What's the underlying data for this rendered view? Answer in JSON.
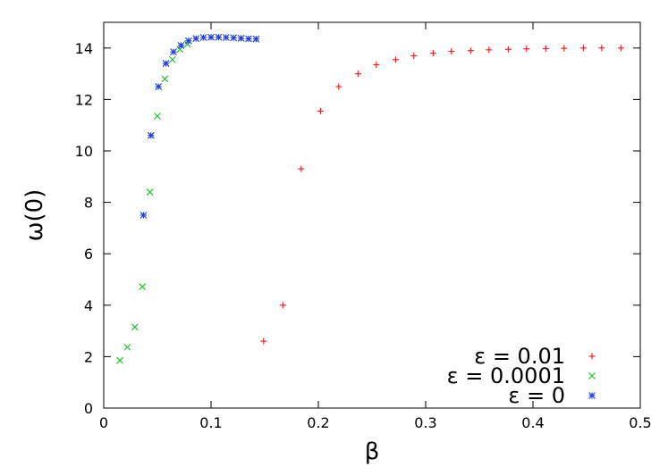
{
  "chart_data": {
    "type": "scatter",
    "title": "",
    "xlabel": "β",
    "ylabel": "ω(0)",
    "xlim": [
      0,
      0.5
    ],
    "ylim": [
      0,
      15
    ],
    "x_ticks": [
      "0",
      "0.1",
      "0.2",
      "0.3",
      "0.4",
      "0.5"
    ],
    "y_ticks": [
      "0",
      "2",
      "4",
      "6",
      "8",
      "10",
      "12",
      "14"
    ],
    "grid": false,
    "legend_position": "bottom-right",
    "series": [
      {
        "name": "ε = 0.01",
        "color": "#e8262b",
        "marker": "plus",
        "x": [
          0.149,
          0.167,
          0.184,
          0.202,
          0.219,
          0.237,
          0.254,
          0.272,
          0.289,
          0.307,
          0.324,
          0.342,
          0.359,
          0.377,
          0.394,
          0.412,
          0.429,
          0.447,
          0.464,
          0.482
        ],
        "y": [
          2.6,
          4.0,
          9.3,
          11.55,
          12.5,
          13.0,
          13.35,
          13.55,
          13.7,
          13.8,
          13.87,
          13.9,
          13.93,
          13.95,
          13.97,
          13.98,
          13.99,
          14.0,
          14.0,
          14.0
        ]
      },
      {
        "name": "ε = 0.0001",
        "color": "#22c22b",
        "marker": "cross",
        "x": [
          0.015,
          0.022,
          0.029,
          0.036,
          0.043,
          0.05,
          0.057,
          0.064,
          0.071,
          0.078
        ],
        "y": [
          1.85,
          2.37,
          3.15,
          4.72,
          8.4,
          11.35,
          12.8,
          13.55,
          13.95,
          14.15
        ]
      },
      {
        "name": "ε = 0",
        "color": "#2440d8",
        "marker": "star",
        "x": [
          0.037,
          0.044,
          0.051,
          0.058,
          0.065,
          0.072,
          0.079,
          0.086,
          0.093,
          0.1,
          0.107,
          0.114,
          0.121,
          0.128,
          0.135,
          0.142
        ],
        "y": [
          7.5,
          10.6,
          12.5,
          13.4,
          13.85,
          14.1,
          14.28,
          14.37,
          14.41,
          14.42,
          14.42,
          14.41,
          14.4,
          14.38,
          14.36,
          14.35
        ]
      }
    ]
  }
}
